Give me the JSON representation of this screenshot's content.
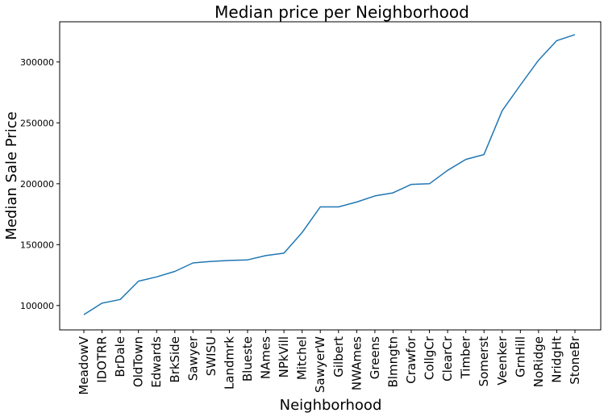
{
  "chart_data": {
    "type": "line",
    "title": "Median price per Neighborhood",
    "xlabel": "Neighborhood",
    "ylabel": "Median Sale Price",
    "categories": [
      "MeadowV",
      "IDOTRR",
      "BrDale",
      "OldTown",
      "Edwards",
      "BrkSide",
      "Sawyer",
      "SWISU",
      "Landmrk",
      "Blueste",
      "NAmes",
      "NPkVill",
      "Mitchel",
      "SawyerW",
      "Gilbert",
      "NWAmes",
      "Greens",
      "Blmngtn",
      "Crawfor",
      "CollgCr",
      "ClearCr",
      "Timber",
      "Somerst",
      "Veenker",
      "GrnHill",
      "NoRidge",
      "NridgHt",
      "StoneBr"
    ],
    "values": [
      92500,
      102000,
      105000,
      120000,
      123500,
      128000,
      135000,
      136200,
      137000,
      137500,
      141000,
      143000,
      160000,
      181000,
      181000,
      185000,
      190000,
      192500,
      199500,
      200000,
      211000,
      220000,
      224000,
      260000,
      281000,
      301500,
      317500,
      322500
    ],
    "ylim": [
      80000,
      333000
    ],
    "yticks": [
      100000,
      150000,
      200000,
      250000,
      300000
    ],
    "ytick_labels": [
      "100000",
      "150000",
      "200000",
      "250000",
      "300000"
    ],
    "grid": false,
    "line_color": "#1f77b4"
  }
}
